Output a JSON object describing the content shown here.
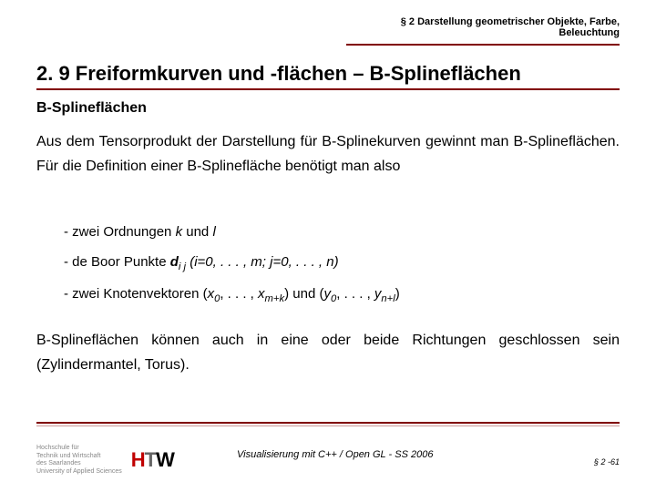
{
  "header": {
    "line1": "§ 2 Darstellung geometrischer Objekte, Farbe,",
    "line2": "Beleuchtung"
  },
  "section_title": "2. 9 Freiformkurven und -flächen – B-Splineflächen",
  "subheading": "B-Splineflächen",
  "paragraph1": "Aus dem Tensorprodukt der Darstellung für B-Splinekurven gewinnt man B-Splineflächen. Für die Definition einer B-Splinefläche benötigt man also",
  "bullet1_prefix": "- zwei Ordnungen ",
  "bullet1_k": "k",
  "bullet1_mid": " und ",
  "bullet1_l": "l",
  "bullet2_prefix": "- de Boor Punkte ",
  "bullet2_dij": "d",
  "bullet2_ij": "i j",
  "bullet2_range": " (i=0, . . . , m; j=0, . . . , n)",
  "bullet3_prefix": "- zwei Knotenvektoren (",
  "bullet3_x0": "x",
  "bullet3_0a": "0",
  "bullet3_mid1": ", . . . , ",
  "bullet3_xmk": "x",
  "bullet3_mk": "m+k",
  "bullet3_mid2": ") und (",
  "bullet3_y0": "y",
  "bullet3_0b": "0",
  "bullet3_mid3": ", . . . , ",
  "bullet3_ynl": "y",
  "bullet3_nl": "n+l",
  "bullet3_end": ")",
  "paragraph2": "B-Splineflächen können auch in eine oder beide Richtungen geschlossen sein (Zylindermantel, Torus).",
  "logo_lines": {
    "l1": "Hochschule für",
    "l2": "Technik und Wirtschaft",
    "l3": "des Saarlandes",
    "l4": "University of Applied Sciences"
  },
  "footer_caption": "Visualisierung mit C++ / Open GL - SS 2006",
  "page_num": "§ 2 -61"
}
